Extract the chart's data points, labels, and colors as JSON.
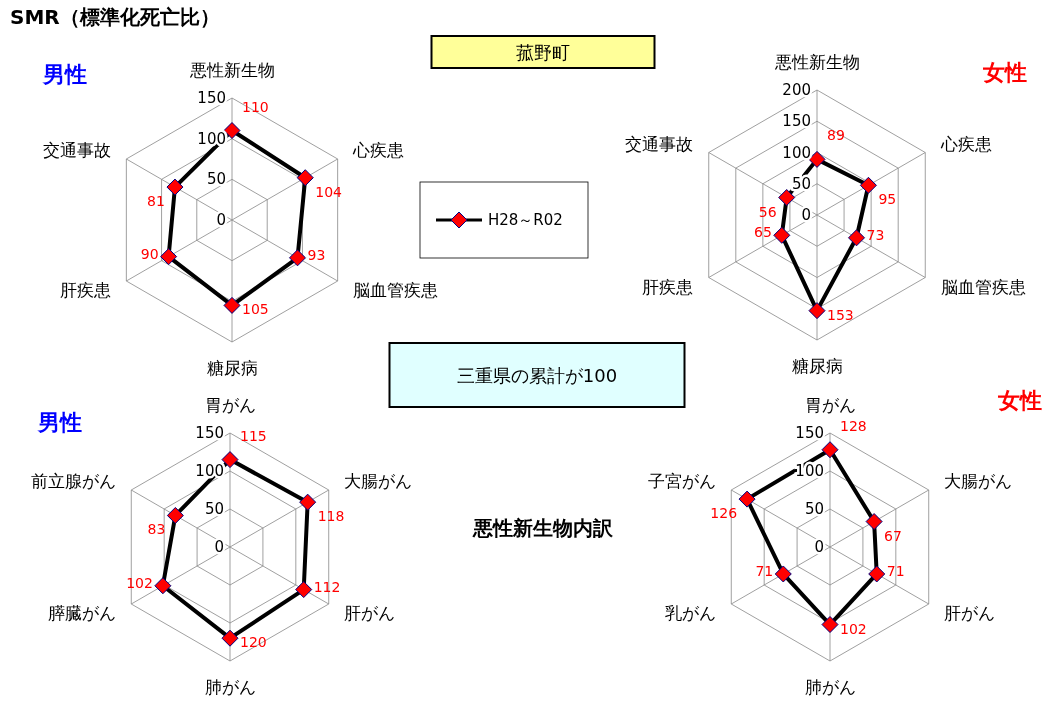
{
  "chart_data": [
    {
      "type": "radar",
      "title": "SMR（標準化死亡比）",
      "subtitle": "男性",
      "annotations": [
        "菰野町"
      ],
      "categories": [
        "悪性新生物",
        "心疾患",
        "脳血管疾患",
        "糖尿病",
        "肝疾患",
        "交通事故"
      ],
      "series": [
        {
          "name": "H28～R02",
          "color": "#000000",
          "values": [
            110,
            104,
            93,
            105,
            90,
            81
          ]
        }
      ],
      "ylim": [
        0,
        150
      ],
      "yticks": [
        0,
        50,
        100,
        150
      ],
      "grid": true,
      "marker": "diamond",
      "data_labels": true,
      "legend": "right"
    },
    {
      "type": "radar",
      "subtitle": "女性",
      "annotations": [
        "三重県の累計が100"
      ],
      "categories": [
        "悪性新生物",
        "心疾患",
        "脳血管疾患",
        "糖尿病",
        "肝疾患",
        "交通事故"
      ],
      "series": [
        {
          "color": "#000000",
          "values": [
            89,
            95,
            73,
            153,
            65,
            56
          ]
        }
      ],
      "ylim": [
        0,
        200
      ],
      "yticks": [
        0,
        50,
        100,
        150,
        200
      ],
      "grid": true,
      "marker": "diamond",
      "data_labels": true
    },
    {
      "type": "radar",
      "subtitle": "男性",
      "annotations": [
        "悪性新生物内訳"
      ],
      "categories": [
        "胃がん",
        "大腸がん",
        "肝がん",
        "肺がん",
        "膵臓がん",
        "前立腺がん"
      ],
      "series": [
        {
          "color": "#000000",
          "values": [
            115,
            118,
            112,
            120,
            102,
            83
          ]
        }
      ],
      "ylim": [
        0,
        150
      ],
      "yticks": [
        0,
        50,
        100,
        150
      ],
      "grid": true,
      "marker": "diamond",
      "data_labels": true
    },
    {
      "type": "radar",
      "subtitle": "女性",
      "categories": [
        "胃がん",
        "大腸がん",
        "肝がん",
        "肺がん",
        "乳がん",
        "子宮がん"
      ],
      "series": [
        {
          "color": "#000000",
          "values": [
            128,
            67,
            71,
            102,
            71,
            126
          ]
        }
      ],
      "ylim": [
        0,
        150
      ],
      "yticks": [
        0,
        50,
        100,
        150
      ],
      "grid": true,
      "marker": "diamond",
      "data_labels": true
    }
  ]
}
